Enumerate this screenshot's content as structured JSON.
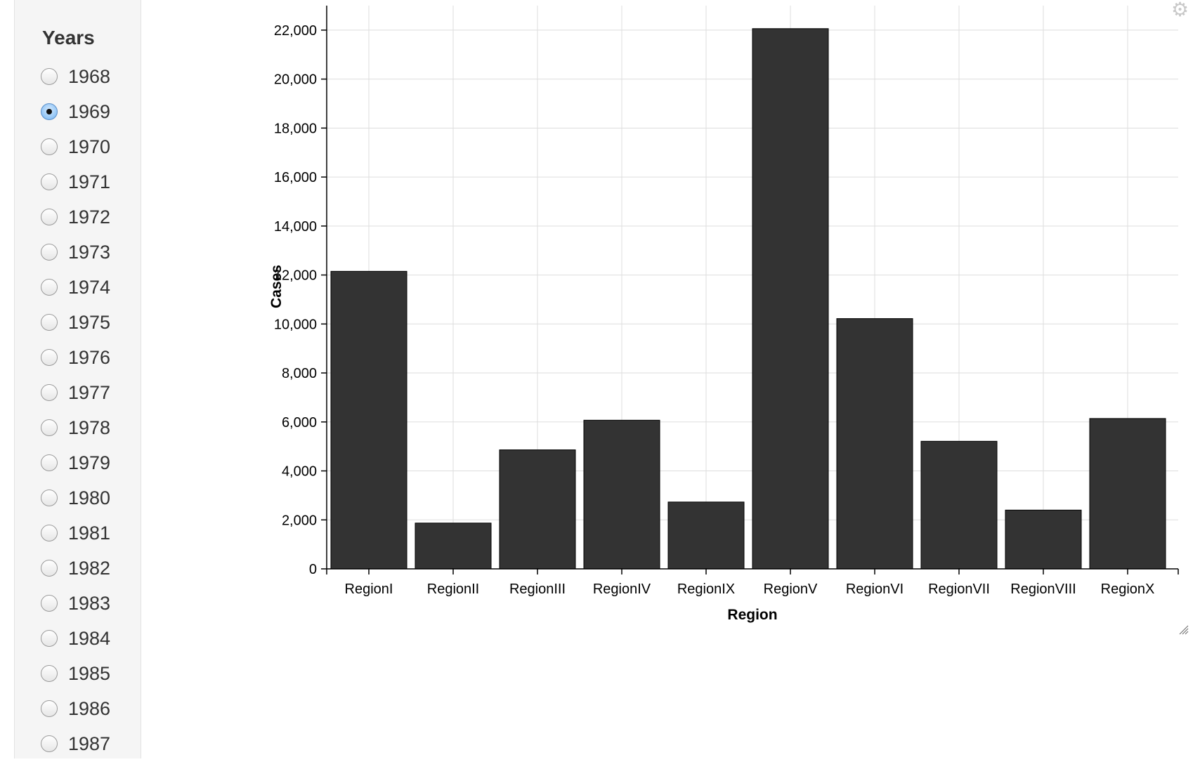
{
  "sidebar": {
    "title": "Years",
    "selected_year": "1969",
    "years": [
      "1968",
      "1969",
      "1970",
      "1971",
      "1972",
      "1973",
      "1974",
      "1975",
      "1976",
      "1977",
      "1978",
      "1979",
      "1980",
      "1981",
      "1982",
      "1983",
      "1984",
      "1985",
      "1986",
      "1987"
    ]
  },
  "toolbar": {
    "settings_icon": "gear-icon",
    "resize_icon": "resize-handle-icon"
  },
  "chart_data": {
    "type": "bar",
    "categories": [
      "RegionI",
      "RegionII",
      "RegionIII",
      "RegionIV",
      "RegionIX",
      "RegionV",
      "RegionVI",
      "RegionVII",
      "RegionVIII",
      "RegionX"
    ],
    "values": [
      12150,
      1870,
      4860,
      6070,
      2730,
      22060,
      10220,
      5210,
      2400,
      6140
    ],
    "xlabel": "Region",
    "ylabel": "Cases",
    "ylim": [
      0,
      23000
    ],
    "yticks": [
      0,
      2000,
      4000,
      6000,
      8000,
      10000,
      12000,
      14000,
      16000,
      18000,
      20000,
      22000
    ],
    "ytick_labels": [
      "0",
      "2,000",
      "4,000",
      "6,000",
      "8,000",
      "10,000",
      "12,000",
      "14,000",
      "16,000",
      "18,000",
      "20,000",
      "22,000"
    ],
    "grid": true,
    "bar_color": "#333333",
    "grid_color": "#dddddd"
  }
}
